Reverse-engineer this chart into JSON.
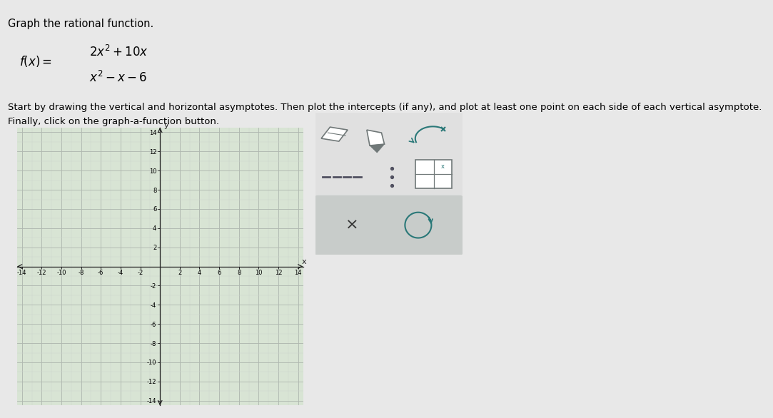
{
  "title": "Graph the rational function.",
  "instruction1": "Start by drawing the vertical and horizontal asymptotes. Then plot the intercepts (if any), and plot at least one point on each side of each vertical asymptote.",
  "instruction2": "Finally, click on the graph-a-function button.",
  "xmin": -14,
  "xmax": 14,
  "ymin": -14,
  "ymax": 14,
  "xticks": [
    -14,
    -12,
    -10,
    -8,
    -6,
    -4,
    -2,
    2,
    4,
    6,
    8,
    10,
    12,
    14
  ],
  "yticks": [
    -14,
    -12,
    -10,
    -8,
    -6,
    -4,
    -2,
    2,
    4,
    6,
    8,
    10,
    12,
    14
  ],
  "grid_major_color": "#b0b8b0",
  "grid_minor_color": "#ccd4cc",
  "axis_color": "#222222",
  "plot_bg": "#d8e4d4",
  "page_bg": "#e8e8e8",
  "toolbar_bg": "#e0e0e0",
  "toolbar_border": "#b0b0b0",
  "toolbar_bottom_bg": "#c8ccca",
  "icon_gray": "#707878",
  "icon_teal": "#2a7878",
  "dashed_color": "#505060",
  "x_label": "x",
  "y_label": "y"
}
